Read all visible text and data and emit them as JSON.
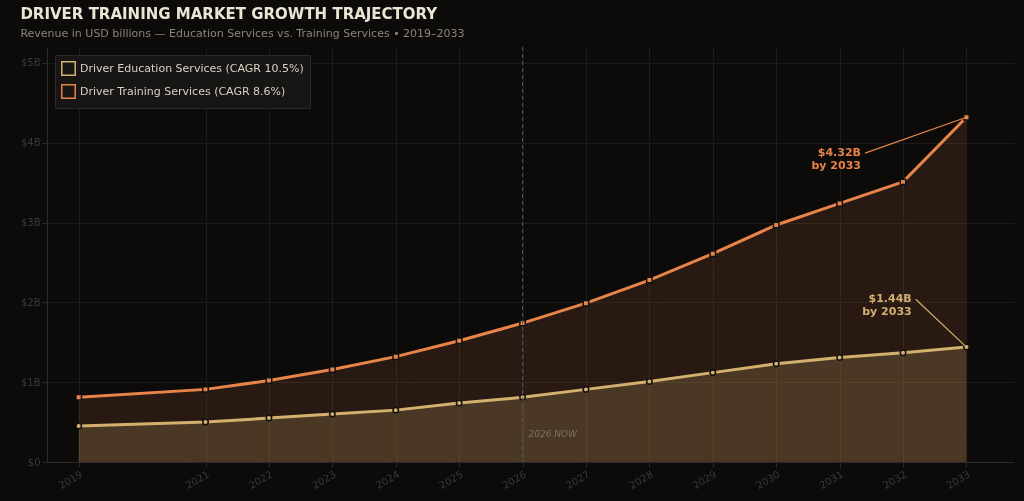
{
  "chart_data": {
    "type": "area",
    "title": "DRIVER TRAINING MARKET GROWTH TRAJECTORY",
    "subtitle": "Revenue in USD billions — Education Services vs. Training Services  •  2019–2033",
    "x": [
      2019,
      2021,
      2022,
      2023,
      2024,
      2025,
      2026,
      2027,
      2028,
      2029,
      2030,
      2031,
      2032,
      2033
    ],
    "series": [
      {
        "name": "Driver Education Services (CAGR 10.5%)",
        "color": "#d4b06f",
        "marker": "circle",
        "values": [
          0.45,
          0.5,
          0.55,
          0.6,
          0.65,
          0.74,
          0.81,
          0.91,
          1.01,
          1.12,
          1.23,
          1.31,
          1.37,
          1.44
        ]
      },
      {
        "name": "Driver Training Services (CAGR 8.6%)",
        "color": "#e8844a",
        "marker": "square",
        "values": [
          0.81,
          0.91,
          1.02,
          1.16,
          1.32,
          1.52,
          1.74,
          1.99,
          2.28,
          2.61,
          2.97,
          3.24,
          3.51,
          4.32
        ]
      }
    ],
    "xlim": [
      2018.5,
      2033.75
    ],
    "xticks": [
      2019,
      2021,
      2022,
      2023,
      2024,
      2025,
      2026,
      2027,
      2028,
      2029,
      2030,
      2031,
      2032,
      2033
    ],
    "ylim": [
      0,
      5.2
    ],
    "yticks": [
      {
        "value": 0,
        "label": "$0"
      },
      {
        "value": 1,
        "label": "$1B"
      },
      {
        "value": 2,
        "label": "$2B"
      },
      {
        "value": 3,
        "label": "$3B"
      },
      {
        "value": 4,
        "label": "$4B"
      },
      {
        "value": 5,
        "label": "$5B"
      }
    ],
    "ref_lines": [
      {
        "axis": "x",
        "value": 2026,
        "label": "2026 NOW",
        "line_style": "dashed",
        "color": "#555555"
      }
    ],
    "annotations": [
      {
        "text": "$4.32B\nby 2033",
        "x": 2033,
        "y": 4.32
      },
      {
        "text": "$1.44B\nby 2033",
        "x": 2033,
        "y": 1.44
      }
    ],
    "grid": true,
    "legend": "top left",
    "line_style": "solid"
  }
}
